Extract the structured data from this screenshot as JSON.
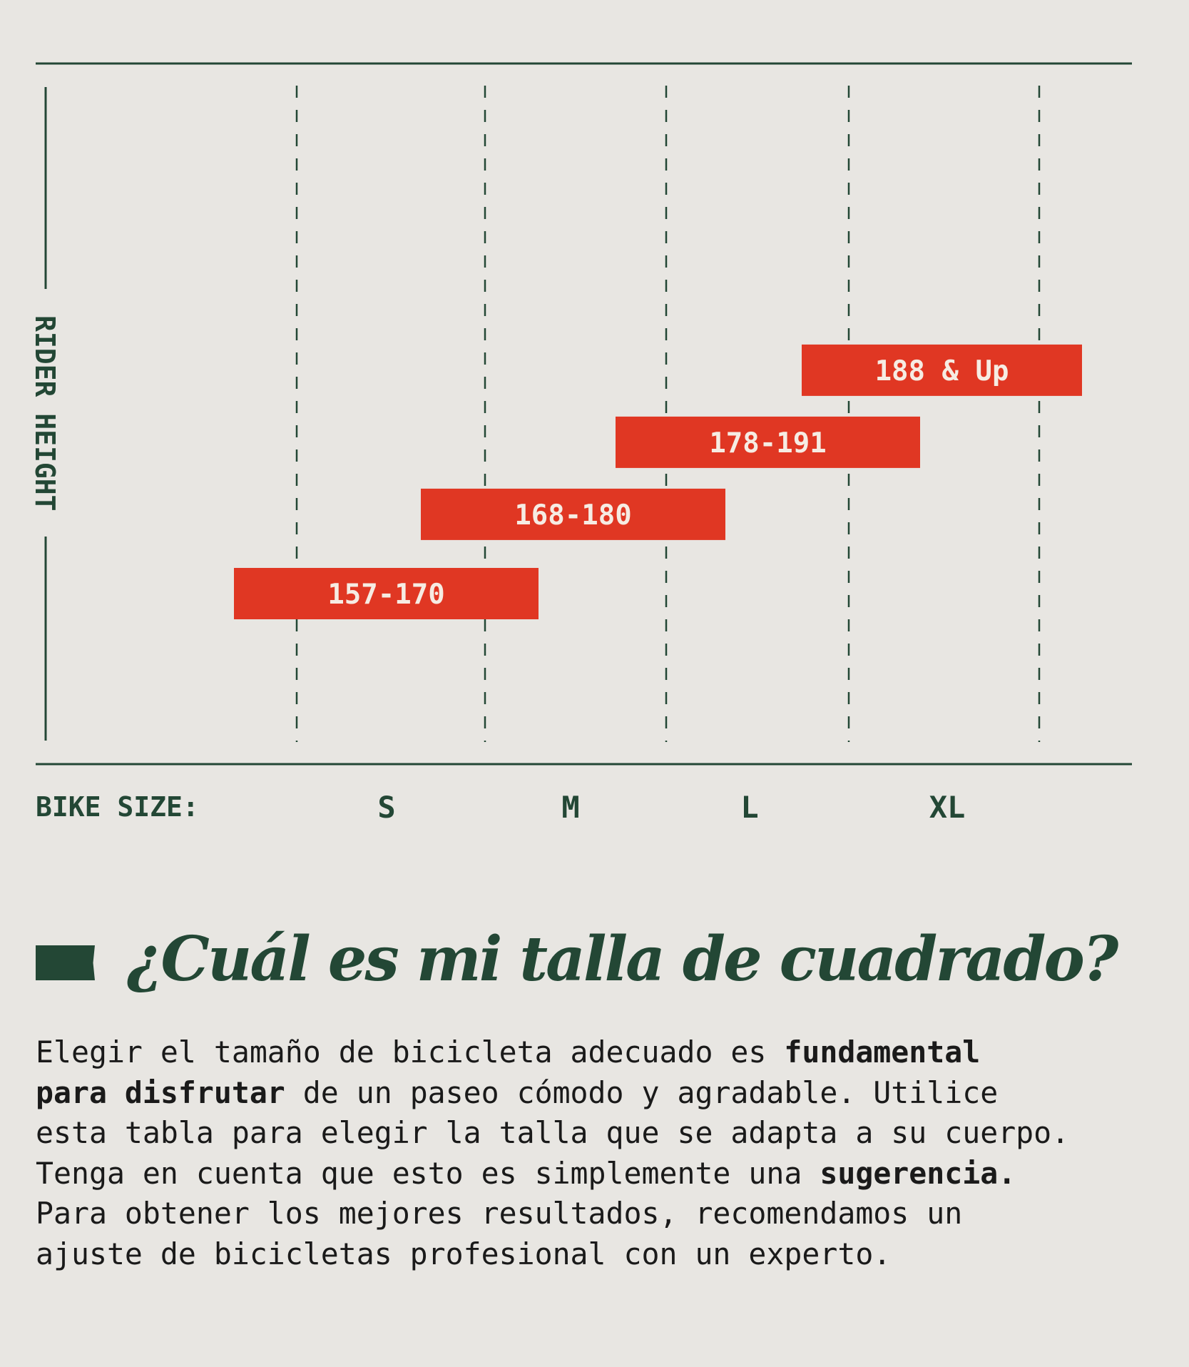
{
  "chart_data": {
    "type": "bar",
    "orientation": "horizontal-range",
    "y_axis_label": "RIDER HEIGHT",
    "x_axis_label": "BIKE SIZE:",
    "size_labels": [
      "S",
      "M",
      "L",
      "XL"
    ],
    "ranges": [
      {
        "label": "157-170",
        "start_size": "S",
        "end_size": "M",
        "min": 157,
        "max": 170
      },
      {
        "label": "168-180",
        "start_size": "M",
        "end_size": "L",
        "min": 168,
        "max": 180
      },
      {
        "label": "178-191",
        "start_size": "L",
        "end_size": "XL",
        "min": 178,
        "max": 191
      },
      {
        "label": "188 & Up",
        "start_size": "XL",
        "end_size": "XL",
        "min": 188,
        "max": null
      }
    ],
    "colors": {
      "bar": "#e03723",
      "lines": "#234735",
      "bar_text": "#f6ece3"
    },
    "grid": "dashed vertical"
  },
  "heading": {
    "title": "¿Cuál es mi talla de cuadrado?"
  },
  "body": {
    "line1_plain": "Elegir el tamaño de bicicleta adecuado es ",
    "line1_bold": "fundamental",
    "line2_bold": "para disfrutar",
    "line2_plain": " de un paseo cómodo y agradable. Utilice",
    "line3": "esta tabla para elegir la talla que se adapta a su cuerpo.",
    "line4_plain": "Tenga en cuenta que esto es simplemente una ",
    "line4_bold": "sugerencia.",
    "line5": "Para obtener los mejores resultados, recomendamos un",
    "line6": "ajuste de bicicletas profesional con un experto."
  }
}
